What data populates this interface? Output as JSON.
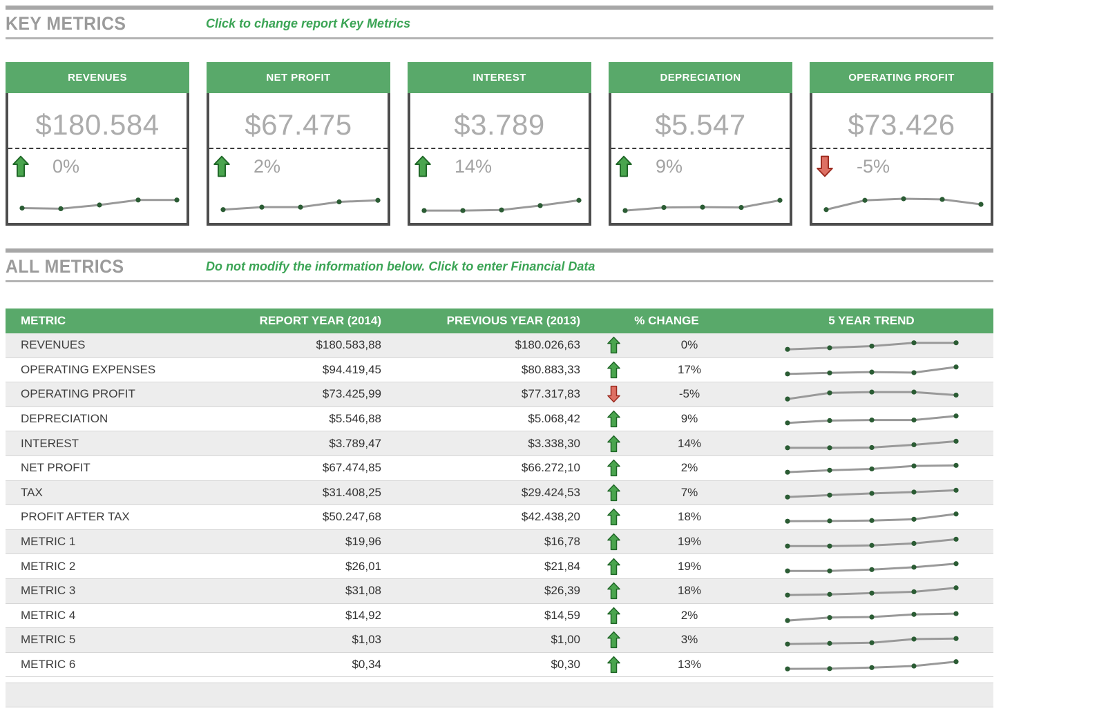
{
  "colors": {
    "green_header": "#59A96A",
    "section_bar_gray": "#A7A7A7",
    "section_title_gray": "#9B9B9B",
    "instruction_green": "#3BA455",
    "card_border_gray": "#4D4D4D",
    "card_value_gray": "#ACACAC",
    "arrow_up_fill": "#4AA54E",
    "arrow_up_stroke": "#1F6627",
    "arrow_down_fill": "#DE7064",
    "arrow_down_stroke": "#9C2B20",
    "spark_line": "#999999",
    "spark_dot": "#2B5C34",
    "row_alt_bg": "#EDEDED"
  },
  "key_metrics": {
    "title": "KEY METRICS",
    "instruction": "Click to change report Key Metrics",
    "cards": [
      {
        "title": "REVENUES",
        "value": "$180.584",
        "change": "0%",
        "direction": "up",
        "trend": [
          30,
          28,
          40,
          56,
          56
        ]
      },
      {
        "title": "NET PROFIT",
        "value": "$67.475",
        "change": "2%",
        "direction": "up",
        "trend": [
          25,
          33,
          33,
          50,
          55
        ]
      },
      {
        "title": "INTEREST",
        "value": "$3.789",
        "change": "14%",
        "direction": "up",
        "trend": [
          22,
          22,
          24,
          38,
          55
        ]
      },
      {
        "title": "DEPRECIATION",
        "value": "$5.547",
        "change": "9%",
        "direction": "up",
        "trend": [
          22,
          32,
          33,
          32,
          55
        ]
      },
      {
        "title": "OPERATING PROFIT",
        "value": "$73.426",
        "change": "-5%",
        "direction": "down",
        "trend": [
          25,
          55,
          60,
          58,
          42
        ]
      }
    ]
  },
  "all_metrics": {
    "title": "ALL METRICS",
    "instruction": "Do not modify the information below. Click to enter Financial Data",
    "table": {
      "headers": [
        "METRIC",
        "REPORT YEAR (2014)",
        "PREVIOUS YEAR (2013)",
        "% CHANGE",
        "5 YEAR TREND"
      ],
      "rows": [
        {
          "metric": "REVENUES",
          "report": "$180.583,88",
          "previous": "$180.026,63",
          "change": "0%",
          "direction": "up",
          "trend": [
            20,
            32,
            45,
            70,
            70
          ]
        },
        {
          "metric": "OPERATING EXPENSES",
          "report": "$94.419,45",
          "previous": "$80.883,33",
          "change": "17%",
          "direction": "up",
          "trend": [
            22,
            30,
            36,
            32,
            75
          ]
        },
        {
          "metric": "OPERATING PROFIT",
          "report": "$73.425,99",
          "previous": "$77.317,83",
          "change": "-5%",
          "direction": "down",
          "trend": [
            15,
            62,
            68,
            68,
            45
          ]
        },
        {
          "metric": "DEPRECIATION",
          "report": "$5.546,88",
          "previous": "$5.068,42",
          "change": "9%",
          "direction": "up",
          "trend": [
            22,
            40,
            44,
            44,
            75
          ]
        },
        {
          "metric": "INTEREST",
          "report": "$3.789,47",
          "previous": "$3.338,30",
          "change": "14%",
          "direction": "up",
          "trend": [
            22,
            22,
            24,
            45,
            72
          ]
        },
        {
          "metric": "NET PROFIT",
          "report": "$67.474,85",
          "previous": "$66.272,10",
          "change": "2%",
          "direction": "up",
          "trend": [
            20,
            35,
            45,
            68,
            72
          ]
        },
        {
          "metric": "TAX",
          "report": "$31.408,25",
          "previous": "$29.424,53",
          "change": "7%",
          "direction": "up",
          "trend": [
            20,
            35,
            48,
            58,
            72
          ]
        },
        {
          "metric": "PROFIT AFTER TAX",
          "report": "$50.247,68",
          "previous": "$42.438,20",
          "change": "18%",
          "direction": "up",
          "trend": [
            20,
            22,
            25,
            35,
            75
          ]
        },
        {
          "metric": "METRIC 1",
          "report": "$19,96",
          "previous": "$16,78",
          "change": "19%",
          "direction": "up",
          "trend": [
            20,
            20,
            25,
            40,
            72
          ]
        },
        {
          "metric": "METRIC 2",
          "report": "$26,01",
          "previous": "$21,84",
          "change": "19%",
          "direction": "up",
          "trend": [
            20,
            20,
            30,
            48,
            75
          ]
        },
        {
          "metric": "METRIC 3",
          "report": "$31,08",
          "previous": "$26,39",
          "change": "18%",
          "direction": "up",
          "trend": [
            20,
            25,
            35,
            45,
            75
          ]
        },
        {
          "metric": "METRIC 4",
          "report": "$14,92",
          "previous": "$14,59",
          "change": "2%",
          "direction": "up",
          "trend": [
            15,
            38,
            42,
            62,
            68
          ]
        },
        {
          "metric": "METRIC 5",
          "report": "$1,03",
          "previous": "$1,00",
          "change": "3%",
          "direction": "up",
          "trend": [
            20,
            25,
            30,
            58,
            62
          ]
        },
        {
          "metric": "METRIC 6",
          "report": "$0,34",
          "previous": "$0,30",
          "change": "13%",
          "direction": "up",
          "trend": [
            20,
            22,
            30,
            42,
            75
          ]
        }
      ]
    }
  }
}
